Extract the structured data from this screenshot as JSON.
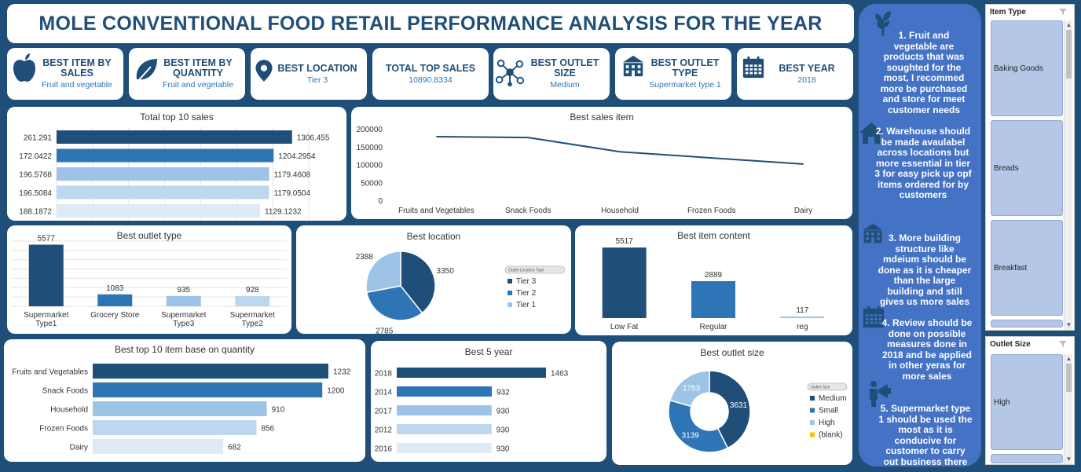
{
  "header": {
    "title": "MOLE CONVENTIONAL FOOD RETAIL PERFORMANCE ANALYSIS FOR THE YEAR"
  },
  "kpis": [
    {
      "label": "BEST ITEM BY SALES",
      "value": "Fruit and vegetable",
      "icon": "apple-icon"
    },
    {
      "label": "BEST ITEM BY QUANTITY",
      "value": "Fruit and vegetable",
      "icon": "leaf-icon"
    },
    {
      "label": "BEST LOCATION",
      "value": "Tier 3",
      "icon": "location-pin-icon"
    },
    {
      "label": "TOTAL TOP SALES",
      "value": "10890.8334",
      "icon": ""
    },
    {
      "label": "BEST OUTLET SIZE",
      "value": "Medium",
      "icon": "network-people-icon"
    },
    {
      "label": "BEST OUTLET TYPE",
      "value": "Supermarket type 1",
      "icon": "building-icon"
    },
    {
      "label": "BEST YEAR",
      "value": "2018",
      "icon": "calendar-icon"
    }
  ],
  "colors": {
    "dark": "#1f4e79",
    "mid": "#2e75b6",
    "light": "#9dc3e6",
    "lighter": "#bdd7ee",
    "lightest": "#deebf7",
    "panel": "#4472c4",
    "orange": "#ffc000"
  },
  "chart_data": [
    {
      "id": "top10sales",
      "type": "bar",
      "orientation": "horizontal",
      "title": "Total top 10 sales",
      "categories": [
        "261.291",
        "172.0422",
        "196.5768",
        "196.5084",
        "188.1872"
      ],
      "values": [
        1306.455,
        1204.2954,
        1179.4608,
        1179.0504,
        1129.1232
      ],
      "labels": [
        "1306.455",
        "1204.2954",
        "1179.4608",
        "1179.0504",
        "1129.1232"
      ]
    },
    {
      "id": "bestsalesitem",
      "type": "line",
      "title": "Best sales item",
      "categories": [
        "Fruits and Vegetables",
        "Snack Foods",
        "Household",
        "Frozen Foods",
        "Dairy"
      ],
      "values": [
        178000,
        175500,
        135800,
        118500,
        101300
      ],
      "ylim": [
        0,
        200000
      ],
      "yticks": [
        "0",
        "50000",
        "100000",
        "150000",
        "200000"
      ],
      "grid": false
    },
    {
      "id": "bestoutlettype",
      "type": "bar",
      "title": "Best outlet type",
      "categories": [
        [
          "Supermarket",
          "Type1"
        ],
        [
          "Grocery Store"
        ],
        [
          "Supermarket",
          "Type3"
        ],
        [
          "Supermarket",
          "Type2"
        ]
      ],
      "values": [
        5577,
        1083,
        935,
        928
      ],
      "labels": [
        "5577",
        "1083",
        "935",
        "928"
      ]
    },
    {
      "id": "bestlocation",
      "type": "pie",
      "title": "Best location",
      "legend_title": "Outlet Location Type",
      "legend": "right",
      "slices": [
        {
          "name": "Tier 3",
          "value": 3350
        },
        {
          "name": "Tier 2",
          "value": 2785
        },
        {
          "name": "Tier 1",
          "value": 2388
        }
      ],
      "labels": [
        "3350",
        "2785",
        "2388"
      ]
    },
    {
      "id": "bestitemcontent",
      "type": "bar",
      "title": "Best item content",
      "categories": [
        "Low Fat",
        "Regular",
        "reg"
      ],
      "values": [
        5517,
        2889,
        117
      ],
      "labels": [
        "5517",
        "2889",
        "117"
      ]
    },
    {
      "id": "top10quantity",
      "type": "bar",
      "orientation": "horizontal",
      "title": "Best top 10 item base on quantity",
      "categories": [
        "Fruits and Vegetables",
        "Snack Foods",
        "Household",
        "Frozen Foods",
        "Dairy"
      ],
      "values": [
        1232,
        1200,
        910,
        856,
        682
      ],
      "labels": [
        "1232",
        "1200",
        "910",
        "856",
        "682"
      ]
    },
    {
      "id": "best5year",
      "type": "bar",
      "orientation": "horizontal",
      "title": "Best 5 year",
      "categories": [
        "2018",
        "2014",
        "2017",
        "2012",
        "2016"
      ],
      "values": [
        1463,
        932,
        930,
        930,
        930
      ],
      "labels": [
        "1463",
        "932",
        "930",
        "930",
        "930"
      ]
    },
    {
      "id": "bestoutletsize",
      "type": "pie",
      "variant": "donut",
      "title": "Best outlet size",
      "legend_title": "Outlet Size",
      "legend": "right",
      "slices": [
        {
          "name": "Medium",
          "value": 3631
        },
        {
          "name": "Small",
          "value": 3139
        },
        {
          "name": "High",
          "value": 1753
        },
        {
          "name": "(blank)",
          "value": 0
        }
      ],
      "labels": [
        "3631",
        "3139",
        "1753"
      ]
    }
  ],
  "recommendations": [
    {
      "icon": "plant-icon",
      "text": "1. Fruit and vegetable are products that was soughted for the most, I recommed more be purchased and store for meet customer needs"
    },
    {
      "icon": "house-icon",
      "text": "2. Warehouse should be made avaulabel across locations but more essential in tier 3 for easy pick up opf items ordered for by customers"
    },
    {
      "icon": "building-icon",
      "text": "3. More building structure like mdeium should be done as it is cheaper than the large building and still gives us more sales"
    },
    {
      "icon": "calendar-icon",
      "text": "4. Review should be done on possible measures done in 2018 and be applied in other yeras for more sales"
    },
    {
      "icon": "megaphone-person-icon",
      "text": "5. Supermarket type 1 should be used the most as it is conducive for customer to carry out business there"
    }
  ],
  "slicers": {
    "item_type": {
      "header": "Item Type",
      "items": [
        "Baking Goods",
        "Breads",
        "Breakfast"
      ]
    },
    "outlet_size": {
      "header": "Outlet Size",
      "items": [
        "High"
      ]
    }
  }
}
